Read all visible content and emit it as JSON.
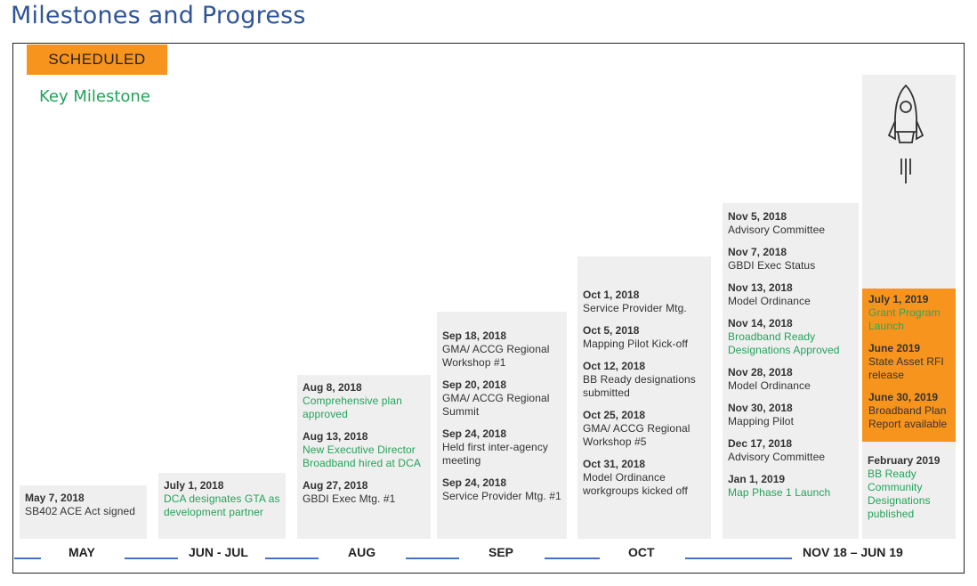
{
  "title": "Milestones and Progress",
  "legend": {
    "scheduled": "SCHEDULED",
    "key_milestone": "Key Milestone"
  },
  "colors": {
    "title": "#2f5597",
    "scheduled": "#f7941d",
    "milestone_green": "#22a35a",
    "timeline_line": "#4472c4",
    "column_bg": "#efefef"
  },
  "timeline": [
    "MAY",
    "JUN - JUL",
    "AUG",
    "SEP",
    "OCT",
    "NOV 18 – JUN 19"
  ],
  "columns": {
    "may": [
      {
        "date": "May 7, 2018",
        "text": "SB402 ACE Act signed",
        "key": false
      }
    ],
    "junjul": [
      {
        "date": "July 1, 2018",
        "text": "DCA designates GTA as development  partner",
        "key": true
      }
    ],
    "aug": [
      {
        "date": "Aug 8, 2018",
        "text": "Comprehensive  plan approved",
        "key": true
      },
      {
        "date": "Aug 13, 2018",
        "text": "New Executive Director Broadband  hired at DCA",
        "key": true
      },
      {
        "date": "Aug 27, 2018",
        "text": "GBDI Exec Mtg. #1",
        "key": false
      }
    ],
    "sep": [
      {
        "date": "Sep 18, 2018",
        "text": "GMA/ ACCG Regional Workshop #1",
        "key": false
      },
      {
        "date": "Sep 20, 2018",
        "text": "GMA/ ACCG Regional Summit",
        "key": false
      },
      {
        "date": "Sep 24, 2018",
        "text": "Held first inter-agency meeting",
        "key": false
      },
      {
        "date": "Sep 24, 2018",
        "text": "Service Provider  Mtg. #1",
        "key": false
      }
    ],
    "oct": [
      {
        "date": "Oct 1, 2018",
        "text": "Service Provider  Mtg.",
        "key": false
      },
      {
        "date": "Oct 5, 2018",
        "text": "Mapping Pilot Kick-off",
        "key": false
      },
      {
        "date": "Oct 12, 2018",
        "text": "BB Ready designations submitted",
        "key": false
      },
      {
        "date": "Oct 25, 2018",
        "text": "GMA/ ACCG Regional Workshop #5",
        "key": false
      },
      {
        "date": "Oct 31, 2018",
        "text": "Model Ordinance workgroups  kicked off",
        "key": false
      }
    ],
    "nov": [
      {
        "date": "Nov 5, 2018",
        "text": "Advisory  Committee",
        "key": false
      },
      {
        "date": "Nov 7, 2018",
        "text": "GBDI Exec Status",
        "key": false
      },
      {
        "date": "Nov 13, 2018",
        "text": "Model Ordinance",
        "key": false
      },
      {
        "date": "Nov 14, 2018",
        "text": "Broadband  Ready Designations Approved",
        "key": true
      },
      {
        "date": "Nov 28, 2018",
        "text": "Model Ordinance",
        "key": false
      },
      {
        "date": "Nov 30, 2018",
        "text": "Mapping Pilot",
        "key": false
      },
      {
        "date": "Dec 17, 2018",
        "text": "Advisory  Committee",
        "key": false
      },
      {
        "date": "Jan 1, 2019",
        "text": "Map Phase 1 Launch",
        "key": true
      }
    ],
    "future_scheduled": [
      {
        "date": "July 1, 2019",
        "text": "Grant Program Launch",
        "key": true
      },
      {
        "date": "June 2019",
        "text": "State Asset RFI release",
        "key": false
      },
      {
        "date": "June 30, 2019",
        "text": "Broadband  Plan Report  available",
        "key": false
      }
    ],
    "future_key": [
      {
        "date": "February 2019",
        "text": "BB Ready Community Designations published",
        "key": true
      }
    ]
  },
  "icons": {
    "rocket": "rocket-icon"
  }
}
